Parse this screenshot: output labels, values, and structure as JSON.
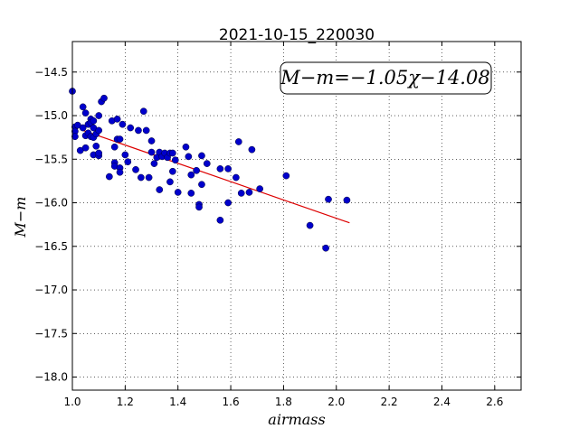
{
  "chart_data": {
    "type": "scatter",
    "title": "2021-10-15_220030",
    "xlabel": "airmass",
    "ylabel": "M−m",
    "xlim": [
      1.0,
      2.7
    ],
    "ylim": [
      -18.15,
      -14.15
    ],
    "grid": true,
    "x_ticks": [
      1.0,
      1.2,
      1.4,
      1.6,
      1.8,
      2.0,
      2.2,
      2.4,
      2.6
    ],
    "x_tick_labels": [
      "1.0",
      "1.2",
      "1.4",
      "1.6",
      "1.8",
      "2.0",
      "2.2",
      "2.4",
      "2.6"
    ],
    "y_ticks": [
      -14.5,
      -15.0,
      -15.5,
      -16.0,
      -16.5,
      -17.0,
      -17.5,
      -18.0
    ],
    "y_tick_labels": [
      "−14.5",
      "−15.0",
      "−15.5",
      "−16.0",
      "−16.5",
      "−17.0",
      "−17.5",
      "−18.0"
    ],
    "annotation": "M−m=−1.05χ−14.08",
    "annotation_position": "top-right",
    "series": [
      {
        "kind": "points",
        "color": "#0000cc",
        "points": [
          [
            1.0,
            -14.72
          ],
          [
            1.01,
            -15.13
          ],
          [
            1.01,
            -15.18
          ],
          [
            1.01,
            -15.24
          ],
          [
            1.02,
            -15.11
          ],
          [
            1.03,
            -15.4
          ],
          [
            1.04,
            -14.9
          ],
          [
            1.04,
            -15.14
          ],
          [
            1.05,
            -14.97
          ],
          [
            1.05,
            -15.37
          ],
          [
            1.05,
            -15.23
          ],
          [
            1.06,
            -15.2
          ],
          [
            1.06,
            -15.1
          ],
          [
            1.07,
            -15.04
          ],
          [
            1.07,
            -15.08
          ],
          [
            1.07,
            -15.24
          ],
          [
            1.08,
            -15.06
          ],
          [
            1.08,
            -15.25
          ],
          [
            1.08,
            -15.45
          ],
          [
            1.08,
            -15.14
          ],
          [
            1.09,
            -15.35
          ],
          [
            1.09,
            -15.21
          ],
          [
            1.1,
            -15.0
          ],
          [
            1.1,
            -15.17
          ],
          [
            1.1,
            -15.46
          ],
          [
            1.1,
            -15.43
          ],
          [
            1.11,
            -14.84
          ],
          [
            1.12,
            -14.8
          ],
          [
            1.14,
            -15.7
          ],
          [
            1.15,
            -15.06
          ],
          [
            1.16,
            -15.36
          ],
          [
            1.16,
            -15.54
          ],
          [
            1.16,
            -15.58
          ],
          [
            1.17,
            -15.04
          ],
          [
            1.17,
            -15.27
          ],
          [
            1.18,
            -15.27
          ],
          [
            1.18,
            -15.6
          ],
          [
            1.18,
            -15.65
          ],
          [
            1.19,
            -15.1
          ],
          [
            1.2,
            -15.45
          ],
          [
            1.21,
            -15.53
          ],
          [
            1.22,
            -15.14
          ],
          [
            1.24,
            -15.62
          ],
          [
            1.25,
            -15.17
          ],
          [
            1.26,
            -15.71
          ],
          [
            1.27,
            -14.95
          ],
          [
            1.28,
            -15.17
          ],
          [
            1.29,
            -15.71
          ],
          [
            1.3,
            -15.29
          ],
          [
            1.3,
            -15.42
          ],
          [
            1.31,
            -15.55
          ],
          [
            1.32,
            -15.48
          ],
          [
            1.33,
            -15.42
          ],
          [
            1.33,
            -15.85
          ],
          [
            1.34,
            -15.47
          ],
          [
            1.35,
            -15.43
          ],
          [
            1.36,
            -15.48
          ],
          [
            1.37,
            -15.43
          ],
          [
            1.37,
            -15.76
          ],
          [
            1.38,
            -15.43
          ],
          [
            1.38,
            -15.64
          ],
          [
            1.39,
            -15.51
          ],
          [
            1.4,
            -15.88
          ],
          [
            1.43,
            -15.36
          ],
          [
            1.44,
            -15.47
          ],
          [
            1.45,
            -15.68
          ],
          [
            1.45,
            -15.89
          ],
          [
            1.47,
            -15.63
          ],
          [
            1.48,
            -16.02
          ],
          [
            1.48,
            -16.05
          ],
          [
            1.49,
            -15.79
          ],
          [
            1.49,
            -15.46
          ],
          [
            1.51,
            -15.55
          ],
          [
            1.56,
            -15.61
          ],
          [
            1.56,
            -16.2
          ],
          [
            1.59,
            -15.61
          ],
          [
            1.59,
            -16.0
          ],
          [
            1.62,
            -15.71
          ],
          [
            1.63,
            -15.3
          ],
          [
            1.64,
            -15.89
          ],
          [
            1.67,
            -15.88
          ],
          [
            1.68,
            -15.39
          ],
          [
            1.71,
            -15.84
          ],
          [
            1.81,
            -15.69
          ],
          [
            1.9,
            -16.26
          ],
          [
            1.96,
            -16.52
          ],
          [
            1.97,
            -15.96
          ],
          [
            2.04,
            -15.97
          ]
        ]
      },
      {
        "kind": "fit-line",
        "color": "#dd0000",
        "points": [
          [
            1.04,
            -15.17
          ],
          [
            2.05,
            -16.23
          ]
        ]
      }
    ]
  }
}
